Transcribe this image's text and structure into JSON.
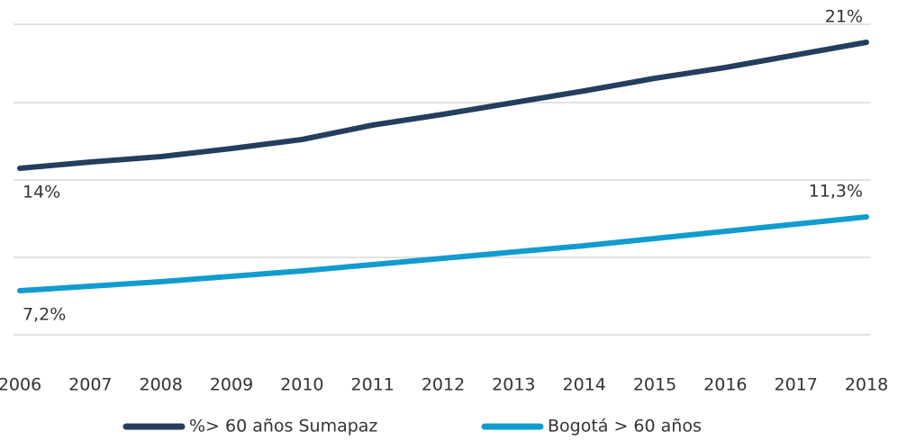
{
  "chart_data": {
    "type": "line",
    "categories": [
      "2006",
      "2007",
      "2008",
      "2009",
      "2010",
      "2011",
      "2012",
      "2013",
      "2014",
      "2015",
      "2016",
      "2017",
      "2018"
    ],
    "series": [
      {
        "name": "%> 60 años Sumapaz",
        "color": "#243e5e",
        "values": [
          14,
          14.35,
          14.65,
          15.1,
          15.6,
          16.4,
          17.0,
          17.65,
          18.3,
          19.0,
          19.6,
          20.3,
          21
        ],
        "value_labels": [
          "14%",
          null,
          null,
          null,
          null,
          null,
          null,
          null,
          null,
          null,
          null,
          null,
          "21%"
        ]
      },
      {
        "name": "Bogotá > 60 años",
        "color": "#119ccf",
        "values": [
          7.2,
          7.45,
          7.7,
          8.0,
          8.3,
          8.65,
          9.0,
          9.35,
          9.7,
          10.1,
          10.5,
          10.9,
          11.3
        ],
        "value_labels": [
          "7,2%",
          null,
          null,
          null,
          null,
          null,
          null,
          null,
          null,
          null,
          null,
          null,
          "11,3%"
        ]
      }
    ],
    "ylim": [
      4.75,
      22
    ],
    "yticks": [
      4.75,
      9.05,
      13.35,
      17.65,
      22
    ],
    "grid": true
  }
}
